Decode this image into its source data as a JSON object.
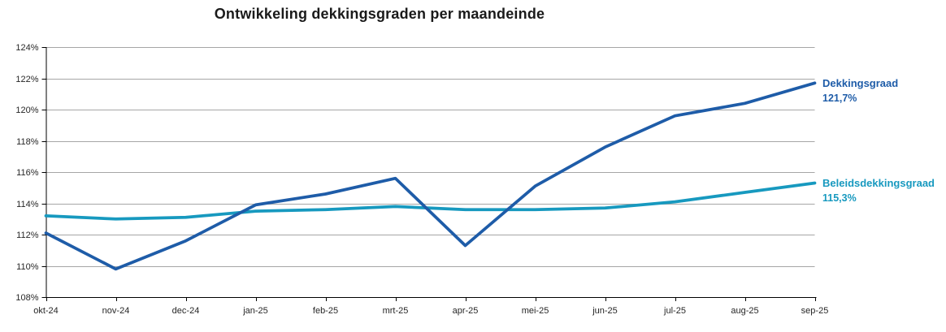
{
  "chart_data": {
    "type": "line",
    "title": "Ontwikkeling dekkingsgraden per maandeinde",
    "categories": [
      "okt-24",
      "nov-24",
      "dec-24",
      "jan-25",
      "feb-25",
      "mrt-25",
      "apr-25",
      "mei-25",
      "jun-25",
      "jul-25",
      "aug-25",
      "sep-25"
    ],
    "series": [
      {
        "name": "Dekkingsgraad",
        "end_label": "121,7%",
        "color": "#1e5ca8",
        "values": [
          112.1,
          109.8,
          111.6,
          113.9,
          114.6,
          115.6,
          111.3,
          115.1,
          117.6,
          119.6,
          120.4,
          121.7
        ]
      },
      {
        "name": "Beleidsdekkingsgraad",
        "end_label": "115,3%",
        "color": "#1799bf",
        "values": [
          113.2,
          113.0,
          113.1,
          113.5,
          113.6,
          113.8,
          113.6,
          113.6,
          113.7,
          114.1,
          114.7,
          115.3
        ]
      }
    ],
    "ylim": [
      108,
      124
    ],
    "yticks": [
      {
        "value": 124,
        "label": "124%"
      },
      {
        "value": 122,
        "label": "122%"
      },
      {
        "value": 120,
        "label": "120%"
      },
      {
        "value": 118,
        "label": "118%"
      },
      {
        "value": 116,
        "label": "116%"
      },
      {
        "value": 114,
        "label": "114%"
      },
      {
        "value": 112,
        "label": "112%"
      },
      {
        "value": 110,
        "label": "110%"
      },
      {
        "value": 108,
        "label": "108%"
      }
    ],
    "grid": "horizontal",
    "legend_position": "line-end-labels-right"
  },
  "style_colors": {
    "gridline": "#a6a6a6",
    "axis": "#000000",
    "title_text": "#1a1a1a",
    "tick_text": "#262626",
    "background": "#ffffff"
  }
}
